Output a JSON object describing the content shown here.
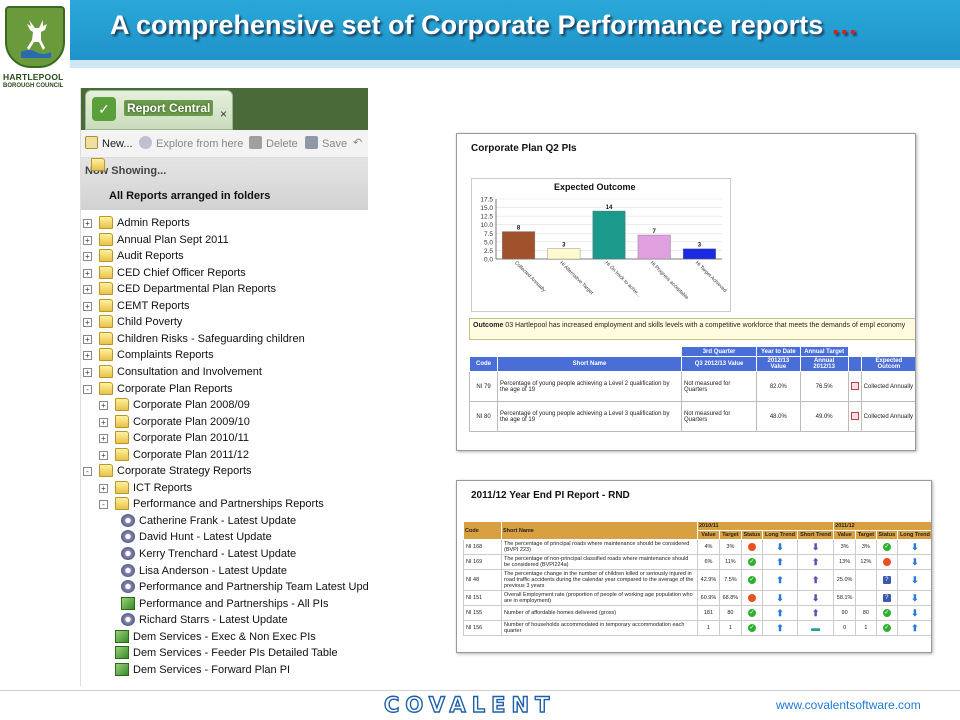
{
  "slide": {
    "title": "A comprehensive set of Corporate Performance reports",
    "title_ellipsis": "…",
    "logo_line1": "HARTLEPOOL",
    "logo_line2": "BOROUGH COUNCIL",
    "footer_brand": "COVALENT",
    "footer_url": "www.covalentsoftware.com"
  },
  "report_central": {
    "tab_label": "Report Central",
    "close_glyph": "×",
    "toolbar": {
      "new_label": "New...",
      "explore_label": "Explore from here",
      "delete_label": "Delete",
      "save_label": "Save"
    },
    "now_showing_label": "Now Showing...",
    "now_showing_value": "All Reports arranged in folders",
    "tree": [
      {
        "label": "Admin Reports",
        "level": 0,
        "icon": "folder",
        "expander": "+"
      },
      {
        "label": "Annual Plan Sept 2011",
        "level": 0,
        "icon": "folder",
        "expander": "+"
      },
      {
        "label": "Audit Reports",
        "level": 0,
        "icon": "folder",
        "expander": "+"
      },
      {
        "label": "CED Chief Officer Reports",
        "level": 0,
        "icon": "folder",
        "expander": "+"
      },
      {
        "label": "CED Departmental Plan Reports",
        "level": 0,
        "icon": "folder",
        "expander": "+"
      },
      {
        "label": "CEMT Reports",
        "level": 0,
        "icon": "folder",
        "expander": "+"
      },
      {
        "label": "Child Poverty",
        "level": 0,
        "icon": "folder",
        "expander": "+"
      },
      {
        "label": "Children Risks - Safeguarding children",
        "level": 0,
        "icon": "folder",
        "expander": "+"
      },
      {
        "label": "Complaints Reports",
        "level": 0,
        "icon": "folder",
        "expander": "+"
      },
      {
        "label": "Consultation and Involvement",
        "level": 0,
        "icon": "folder",
        "expander": "+"
      },
      {
        "label": "Corporate Plan Reports",
        "level": 0,
        "icon": "folder",
        "expander": "-"
      },
      {
        "label": "Corporate Plan 2008/09",
        "level": 1,
        "icon": "folder",
        "expander": "+"
      },
      {
        "label": "Corporate Plan 2009/10",
        "level": 1,
        "icon": "folder",
        "expander": "+"
      },
      {
        "label": "Corporate Plan 2010/11",
        "level": 1,
        "icon": "folder",
        "expander": "+"
      },
      {
        "label": "Corporate Plan 2011/12",
        "level": 1,
        "icon": "folder",
        "expander": "+"
      },
      {
        "label": "Corporate Strategy Reports",
        "level": 0,
        "icon": "folder",
        "expander": "-"
      },
      {
        "label": "ICT Reports",
        "level": 1,
        "icon": "folder",
        "expander": "+"
      },
      {
        "label": "Performance and Partnerships Reports",
        "level": 1,
        "icon": "folder",
        "expander": "-"
      },
      {
        "label": "Catherine Frank - Latest Update",
        "level": 2,
        "icon": "gear",
        "expander": ""
      },
      {
        "label": "David Hunt - Latest Update",
        "level": 2,
        "icon": "gear",
        "expander": ""
      },
      {
        "label": "Kerry Trenchard - Latest Update",
        "level": 2,
        "icon": "gear",
        "expander": ""
      },
      {
        "label": "Lisa Anderson - Latest Update",
        "level": 2,
        "icon": "gear",
        "expander": ""
      },
      {
        "label": "Performance and Partnership Team Latest Upda",
        "level": 2,
        "icon": "gear",
        "expander": ""
      },
      {
        "label": "Performance and Partnerships - All PIs",
        "level": 2,
        "icon": "chart",
        "expander": ""
      },
      {
        "label": "Richard Starrs - Latest Update",
        "level": 2,
        "icon": "gear",
        "expander": ""
      },
      {
        "label": "Dem Services - Exec & Non Exec  PIs",
        "level": 1,
        "icon": "chart",
        "expander": ""
      },
      {
        "label": "Dem Services - Feeder PIs Detailed Table",
        "level": 1,
        "icon": "chart",
        "expander": ""
      },
      {
        "label": "Dem Services - Forward Plan PI",
        "level": 1,
        "icon": "chart",
        "expander": ""
      }
    ]
  },
  "corp_plan_card": {
    "title": "Corporate Plan Q2 PIs",
    "outcome_label": "Outcome",
    "outcome_text": "03 Hartlepool has increased employment and skills levels with a competitive workforce that meets the demands of empl economy",
    "table": {
      "group_headers": [
        "3rd Quarter",
        "Year to Date",
        "Annual Target"
      ],
      "headers": [
        "Code",
        "Short Name",
        "Q3 2012/13 Value",
        "2012/13 Value",
        "Annual 2012/13",
        "",
        "Expected Outcom"
      ],
      "rows": [
        {
          "code": "NI 79",
          "name": "Percentage of young people achieving a Level 2 qualification by the age of 19",
          "q3": "Not measured for Quarters",
          "ytd": "82.0%",
          "annual": "76.5%",
          "outcome": "Collected Annually"
        },
        {
          "code": "NI 80",
          "name": "Percentage of young people achieving a Level 3 qualification by the age of 19",
          "q3": "Not measured for Quarters",
          "ytd": "48.0%",
          "annual": "49.0%",
          "outcome": "Collected Annually"
        }
      ]
    }
  },
  "chart_data": {
    "type": "bar",
    "title": "Expected Outcome",
    "categories": [
      "Collected Annually",
      "Hi Alternative Target",
      "Hi On track to achie...",
      "Hi Progress acceptable",
      "Hi Target Achieved"
    ],
    "values": [
      8,
      3,
      14,
      7,
      3
    ],
    "colors": [
      "#a0522d",
      "#fffacd",
      "#1a9a8a",
      "#e0a0e0",
      "#1a2ae0"
    ],
    "y_ticks": [
      "0.0",
      "2.5",
      "5.0",
      "7.5",
      "10.0",
      "12.5",
      "15.0",
      "17.5"
    ],
    "ylim": [
      0,
      17.5
    ],
    "grid": true,
    "xlabel": "",
    "ylabel": ""
  },
  "year_end_card": {
    "title": "2011/12 Year End PI Report - RND",
    "group_headers": [
      "2010/11",
      "2011/12"
    ],
    "headers": [
      "Code",
      "Short Name",
      "Value",
      "Target",
      "Status",
      "Long Trend",
      "Short Trend",
      "Value",
      "Target",
      "Status",
      "Long Trend"
    ],
    "rows": [
      {
        "code": "NI 168",
        "name": "The percentage of principal roads where maintenance should be considered (BVPI 223)",
        "v1": "4%",
        "t1": "3%",
        "s1": "red",
        "lt1": "down",
        "st1": "down",
        "v2": "3%",
        "t2": "3%",
        "s2": "green",
        "lt2": "down"
      },
      {
        "code": "NI 169",
        "name": "The percentage of non-principal classified roads where maintenance should be considered (BVPI224a)",
        "v1": "6%",
        "t1": "11%",
        "s1": "green",
        "lt1": "up",
        "st1": "up",
        "v2": "13%",
        "t2": "12%",
        "s2": "red",
        "lt2": "down"
      },
      {
        "code": "NI 48",
        "name": "The percentage change in the number of children killed or seriously injured in road traffic accidents during the calendar year compared to the average of the previous 3 years",
        "v1": "42.9%",
        "t1": "7.5%",
        "s1": "green",
        "lt1": "up",
        "st1": "up",
        "v2": "25.0%",
        "t2": "",
        "s2": "q",
        "lt2": "down"
      },
      {
        "code": "NI 151",
        "name": "Overall Employment rate (proportion of people of working age population who are in employment)",
        "v1": "60.9%",
        "t1": "68.8%",
        "s1": "red",
        "lt1": "down",
        "st1": "down",
        "v2": "58.1%",
        "t2": "",
        "s2": "q",
        "lt2": "down"
      },
      {
        "code": "NI 155",
        "name": "Number of affordable homes delivered (gross)",
        "v1": "181",
        "t1": "80",
        "s1": "green",
        "lt1": "up",
        "st1": "up",
        "v2": "90",
        "t2": "80",
        "s2": "green",
        "lt2": "down"
      },
      {
        "code": "NI 156",
        "name": "Number of households accommodated in temporary accommodation each quarter",
        "v1": "1",
        "t1": "1",
        "s1": "green",
        "lt1": "up",
        "st1": "flat",
        "v2": "0",
        "t2": "1",
        "s2": "green",
        "lt2": "up"
      }
    ]
  }
}
